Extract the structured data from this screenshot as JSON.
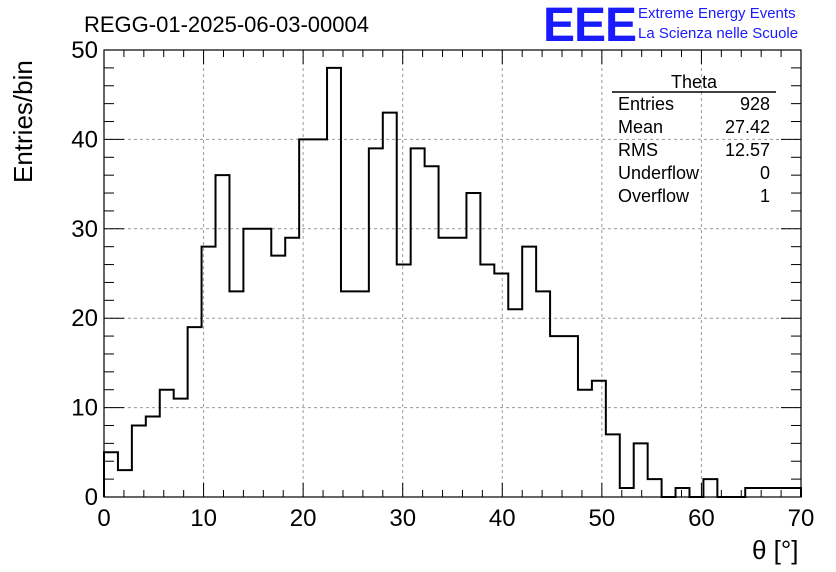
{
  "chart_data": {
    "type": "bar",
    "title": "REGG-01-2025-06-03-00004",
    "xlabel": "θ [°]",
    "ylabel": "Entries/bin",
    "xlim": [
      0,
      70
    ],
    "ylim": [
      0,
      50
    ],
    "xticks": [
      "0",
      "10",
      "20",
      "30",
      "40",
      "50",
      "60",
      "70"
    ],
    "yticks": [
      "0",
      "10",
      "20",
      "30",
      "40",
      "50"
    ],
    "grid": true,
    "bin_width": 1.4,
    "values": [
      5,
      3,
      8,
      9,
      12,
      11,
      19,
      28,
      36,
      23,
      30,
      30,
      27,
      29,
      40,
      40,
      48,
      23,
      23,
      39,
      43,
      26,
      39,
      37,
      29,
      29,
      34,
      26,
      25,
      21,
      28,
      23,
      18,
      18,
      12,
      13,
      7,
      1,
      6,
      2,
      0,
      1,
      0,
      2,
      0,
      0,
      1,
      1,
      1,
      1
    ],
    "stats": {
      "title": "Theta",
      "rows": [
        {
          "label": "Entries",
          "value": "928"
        },
        {
          "label": "Mean",
          "value": "27.42"
        },
        {
          "label": "RMS",
          "value": "12.57"
        },
        {
          "label": "Underflow",
          "value": "0"
        },
        {
          "label": "Overflow",
          "value": "1"
        }
      ]
    }
  },
  "logo": {
    "text": "EEE",
    "line1": "Extreme Energy Events",
    "line2": "La Scienza nelle Scuole",
    "color": "#1a1aff"
  }
}
